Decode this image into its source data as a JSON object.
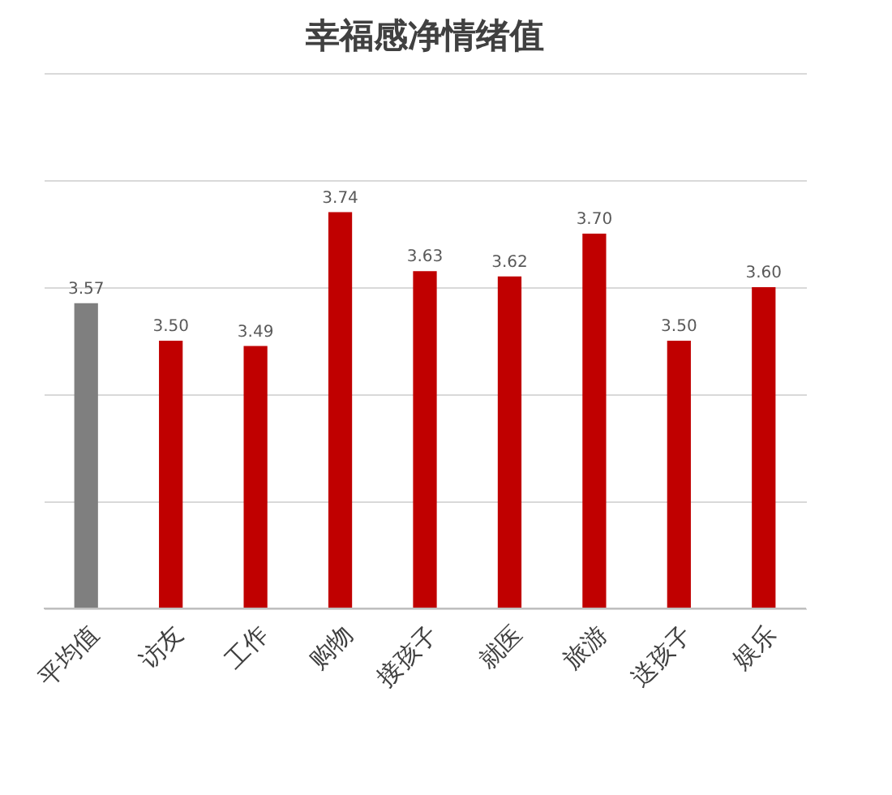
{
  "chart_data": {
    "type": "bar",
    "title": "幸福感净情绪值",
    "categories": [
      "平均值",
      "访友",
      "工作",
      "购物",
      "接孩子",
      "就医",
      "旅游",
      "送孩子",
      "娱乐"
    ],
    "values": [
      3.57,
      3.5,
      3.49,
      3.74,
      3.63,
      3.62,
      3.7,
      3.5,
      3.6
    ],
    "value_labels": [
      "3.57",
      "3.50",
      "3.49",
      "3.74",
      "3.63",
      "3.62",
      "3.70",
      "3.50",
      "3.60"
    ],
    "colors": [
      "#7f7f7f",
      "#c00000",
      "#c00000",
      "#c00000",
      "#c00000",
      "#c00000",
      "#c00000",
      "#c00000",
      "#c00000"
    ],
    "ylim": [
      3.0,
      4.0
    ],
    "yticks": [
      {
        "value": 3.0,
        "label": null
      },
      {
        "value": 3.2,
        "label": null
      },
      {
        "value": 3.4,
        "label": null
      },
      {
        "value": 3.6,
        "label": null
      },
      {
        "value": 3.8,
        "label": null
      },
      {
        "value": 4.0,
        "label": null
      }
    ],
    "grid": "y",
    "tick_labels": "x",
    "legend": false
  }
}
